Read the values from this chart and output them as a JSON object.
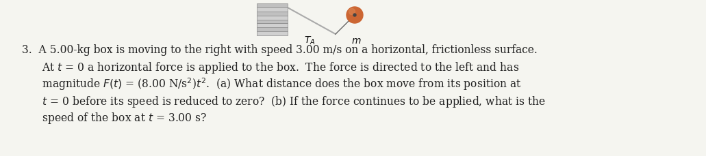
{
  "background_color": "#f5f5f0",
  "text_color": "#222222",
  "font_size": 11.2,
  "wall_face_color": "#c8c8c8",
  "wall_edge_color": "#888888",
  "hatch_color": "#888888",
  "surface_color": "#aaaaaa",
  "rope_color": "#666666",
  "ball_color": "#cc6633",
  "ball_highlight": "#dd8855",
  "line1": "3.  A 5.00-kg box is moving to the right with speed 3.00 m/s on a horizontal, frictionless surface.",
  "line2": "     At t = 0 a horizontal force is applied to the box.  The force is directed to the left and has",
  "line3": "     magnitude F(t) = (8.00 N/s²)t².  (a) What distance does the box move from its position at",
  "line4": "     t = 0 before its speed is reduced to zero?  (b) If the force continues to be applied, what is the",
  "line5": "     speed of the box at t = 3.00 s?"
}
